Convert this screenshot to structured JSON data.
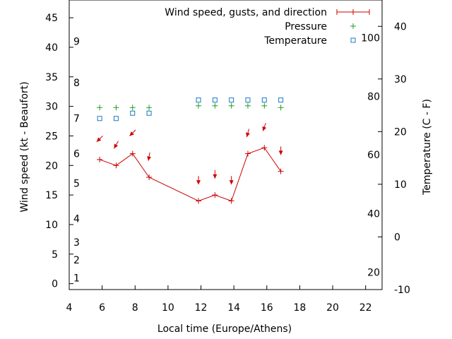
{
  "chart_data": {
    "type": "line",
    "xlabel": "Local time (Europe/Athens)",
    "ylabel": "Wind speed (kt - Beaufort)",
    "y2label": "Temperature (C - F)",
    "xlim": [
      4,
      23
    ],
    "ylim": [
      -1,
      48
    ],
    "y2lim": [
      -10,
      45
    ],
    "x_ticks": [
      4,
      6,
      8,
      10,
      12,
      14,
      16,
      18,
      20,
      22
    ],
    "y_ticks": [
      0,
      5,
      10,
      15,
      20,
      25,
      30,
      35,
      40,
      45
    ],
    "y2_ticks": [
      -10,
      0,
      10,
      20,
      30,
      40
    ],
    "beaufort_labels": [
      {
        "label": "1",
        "kt": 1
      },
      {
        "label": "2",
        "kt": 4
      },
      {
        "label": "3",
        "kt": 7
      },
      {
        "label": "4",
        "kt": 11
      },
      {
        "label": "5",
        "kt": 17
      },
      {
        "label": "6",
        "kt": 22
      },
      {
        "label": "7",
        "kt": 28
      },
      {
        "label": "8",
        "kt": 34
      },
      {
        "label": "9",
        "kt": 41
      }
    ],
    "fahrenheit_labels": [
      {
        "label": "20",
        "c": -6.7
      },
      {
        "label": "40",
        "c": 4.4
      },
      {
        "label": "60",
        "c": 15.6
      },
      {
        "label": "80",
        "c": 26.7
      },
      {
        "label": "100",
        "c": 37.8
      }
    ],
    "legend_position": "top-right",
    "series": [
      {
        "name": "Wind speed, gusts, and direction",
        "style": "line-with-crosses",
        "color": "#cc0000",
        "x": [
          5.85,
          6.85,
          7.85,
          8.85,
          11.85,
          12.85,
          13.85,
          14.85,
          15.85,
          16.85
        ],
        "values": [
          21,
          20,
          22,
          18,
          14,
          15,
          14,
          22,
          23,
          19
        ],
        "gusts": [
          24.5,
          23.5,
          25.5,
          21.5,
          17.5,
          18.5,
          17.5,
          25.5,
          26.5,
          22.5
        ],
        "direction_deg": [
          315,
          330,
          315,
          350,
          0,
          0,
          0,
          345,
          340,
          0
        ]
      },
      {
        "name": "Pressure",
        "style": "plus-markers",
        "color": "#1e9e1e",
        "x": [
          5.85,
          6.85,
          7.85,
          8.85,
          11.85,
          12.85,
          13.85,
          14.85,
          15.85,
          16.85
        ],
        "values": [
          29.8,
          29.8,
          29.8,
          29.8,
          30.1,
          30.1,
          30.1,
          30.1,
          30.1,
          29.8
        ]
      },
      {
        "name": "Temperature",
        "style": "square-markers",
        "color": "#1a7abf",
        "axis": "right",
        "x": [
          5.85,
          6.85,
          7.85,
          8.85,
          11.85,
          12.85,
          13.85,
          14.85,
          15.85,
          16.85
        ],
        "values": [
          22.5,
          22.5,
          23.5,
          23.5,
          26,
          26,
          26,
          26,
          26,
          26
        ]
      }
    ]
  }
}
